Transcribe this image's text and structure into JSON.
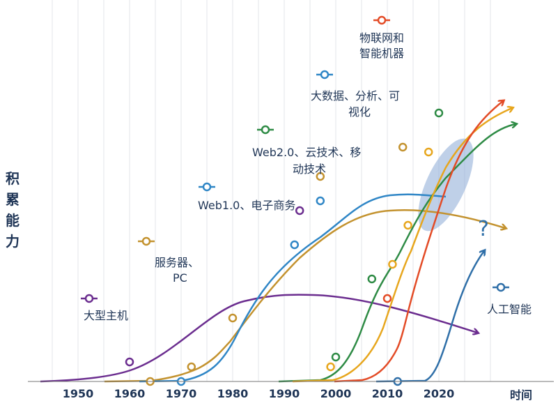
{
  "chart_data": {
    "type": "line",
    "ylabel": "积累能力",
    "xlabel": "时间",
    "x_ticks": [
      "1950",
      "1960",
      "1970",
      "1980",
      "1990",
      "2000",
      "2010",
      "2020"
    ],
    "series": [
      {
        "name": "大型主机",
        "color": "#6b2d8f",
        "points": [
          [
            1960,
            0.04
          ],
          [
            1993,
            0.35
          ]
        ]
      },
      {
        "name": "服务器、PC",
        "color": "#c3922e",
        "points": [
          [
            1964,
            0.0
          ],
          [
            1972,
            0.03
          ],
          [
            1980,
            0.13
          ],
          [
            1997,
            0.42
          ],
          [
            2013,
            0.48
          ]
        ]
      },
      {
        "name": "Web1.0、电子商务",
        "color": "#2f86c6",
        "points": [
          [
            1970,
            0.0
          ],
          [
            1992,
            0.28
          ],
          [
            1997,
            0.37
          ]
        ]
      },
      {
        "name": "Web2.0、云技术、移动技术",
        "color": "#2e8b45",
        "points": [
          [
            2000,
            0.05
          ],
          [
            2007,
            0.21
          ],
          [
            2020,
            0.55
          ]
        ]
      },
      {
        "name": "大数据、分析、可视化",
        "color": "#e7a61d",
        "points": [
          [
            1999,
            0.03
          ],
          [
            2011,
            0.24
          ],
          [
            2014,
            0.32
          ],
          [
            2018,
            0.47
          ]
        ]
      },
      {
        "name": "物联网和智能机器",
        "color": "#e34b26",
        "points": [
          [
            2010,
            0.17
          ]
        ]
      },
      {
        "name": "人工智能",
        "color": "#2f6fa8",
        "points": [
          [
            2012,
            0.0
          ]
        ]
      }
    ]
  },
  "y_label_chars": [
    "积",
    "累",
    "能",
    "力"
  ],
  "annotations": {
    "mainframe": "大型主机",
    "server_line1": "服务器、",
    "server_line2": "PC",
    "web1": "Web1.0、电子商务",
    "web2_line1": "Web2.0、云技术、移",
    "web2_line2": "动技术",
    "bigdata_line1": "大数据、分析、可",
    "bigdata_line2": "视化",
    "iot_line1": "物联网和",
    "iot_line2": "智能机器",
    "ai": "人工智能",
    "question_mark": "?"
  }
}
